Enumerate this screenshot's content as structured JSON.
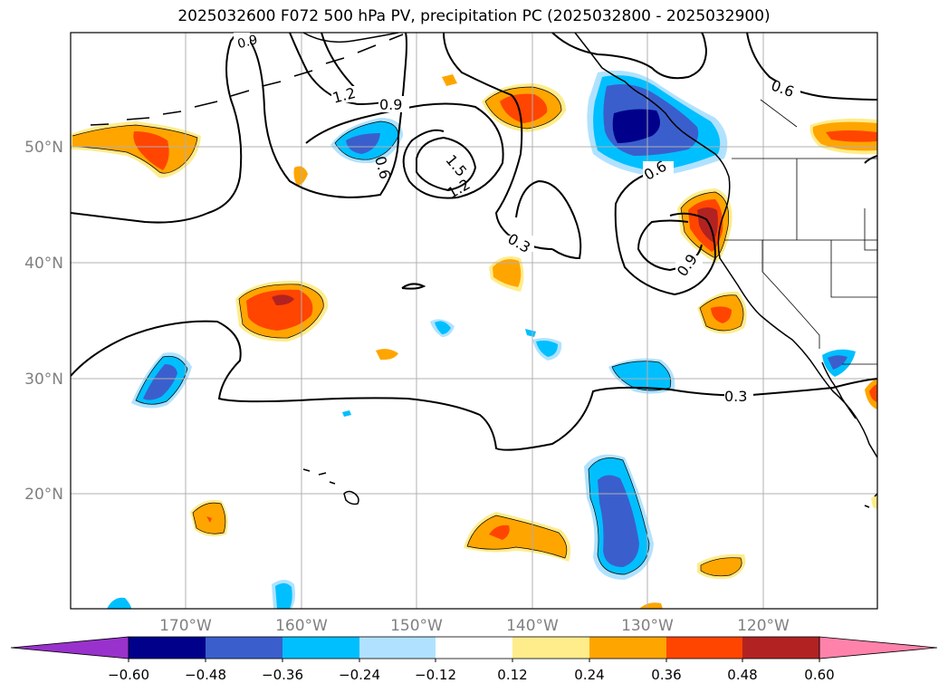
{
  "title": "2025032600 F072 500 hPa PV, precipitation PC (2025032800 - 2025032900)",
  "map": {
    "lat_labels": [
      "50°N",
      "40°N",
      "30°N",
      "20°N"
    ],
    "lon_labels": [
      "170°W",
      "160°W",
      "150°W",
      "140°W",
      "130°W",
      "120°W"
    ],
    "contour_labels": [
      "0.9",
      "1.2",
      "0.6",
      "0.9",
      "1.5",
      "1.2",
      "0.6",
      "0.6",
      "0.3",
      "0.9",
      "0.3"
    ],
    "grid_color": "#b0b0b0",
    "label_color": "#808080"
  },
  "colorbar": {
    "ticks": [
      "−0.60",
      "−0.48",
      "−0.36",
      "−0.24",
      "−0.12",
      "0.12",
      "0.24",
      "0.36",
      "0.48",
      "0.60"
    ],
    "colors": [
      "#9932cc",
      "#00008b",
      "#3a5fcd",
      "#00bfff",
      "#b0e2ff",
      "#ffffff",
      "#ffec8b",
      "#ffa500",
      "#ff4500",
      "#b22222",
      "#ff82ab"
    ]
  }
}
